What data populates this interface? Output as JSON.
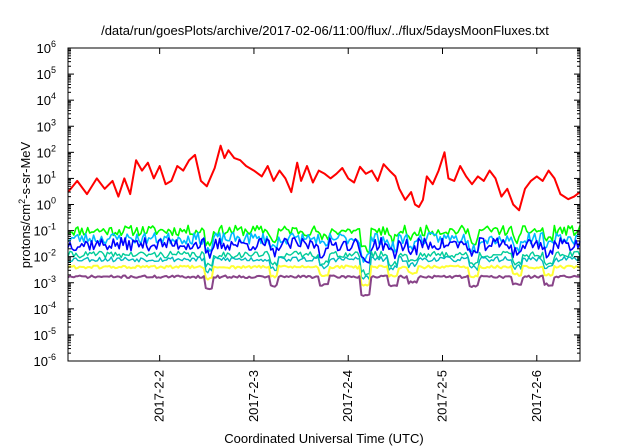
{
  "chart_data": {
    "type": "line",
    "title": "/data/run/goesPlots/archive/2017-02-06/11:00/flux/../flux/5daysMoonFluxes.txt",
    "xlabel": "Coordinated Universal Time (UTC)",
    "ylabel_parts": [
      "protons/cm",
      "2",
      "-s-sr-MeV"
    ],
    "y_scale": "log",
    "ylim": [
      1e-06,
      1000000.0
    ],
    "y_ticks": [
      {
        "base": "10",
        "exp": "-6",
        "value": 1e-06
      },
      {
        "base": "10",
        "exp": "-5",
        "value": 1e-05
      },
      {
        "base": "10",
        "exp": "-4",
        "value": 0.0001
      },
      {
        "base": "10",
        "exp": "-3",
        "value": 0.001
      },
      {
        "base": "10",
        "exp": "-2",
        "value": 0.01
      },
      {
        "base": "10",
        "exp": "-1",
        "value": 0.1
      },
      {
        "base": "10",
        "exp": "0",
        "value": 1
      },
      {
        "base": "10",
        "exp": "1",
        "value": 10
      },
      {
        "base": "10",
        "exp": "2",
        "value": 100
      },
      {
        "base": "10",
        "exp": "3",
        "value": 1000
      },
      {
        "base": "10",
        "exp": "4",
        "value": 10000
      },
      {
        "base": "10",
        "exp": "5",
        "value": 100000
      },
      {
        "base": "10",
        "exp": "6",
        "value": 1000000
      }
    ],
    "xlim": [
      "2017-02-01T00:40",
      "2017-02-06T11:00"
    ],
    "x_ticks": [
      {
        "label": "2017-2-2",
        "value": "2017-02-02T00:00"
      },
      {
        "label": "2017-2-3",
        "value": "2017-02-03T00:00"
      },
      {
        "label": "2017-2-4",
        "value": "2017-02-04T00:00"
      },
      {
        "label": "2017-2-5",
        "value": "2017-02-05T00:00"
      },
      {
        "label": "2017-2-6",
        "value": "2017-02-06T00:00"
      }
    ],
    "grid": false,
    "legend": "none",
    "series": [
      {
        "color": "#ff0000",
        "width": 2,
        "values": [
          [
            "2017-02-01T00:40",
            3
          ],
          [
            "2017-02-01T03:00",
            8
          ],
          [
            "2017-02-01T05:30",
            2.5
          ],
          [
            "2017-02-01T08:00",
            10
          ],
          [
            "2017-02-01T10:00",
            4
          ],
          [
            "2017-02-01T12:00",
            8
          ],
          [
            "2017-02-01T13:30",
            2
          ],
          [
            "2017-02-01T15:00",
            10
          ],
          [
            "2017-02-01T16:30",
            2.5
          ],
          [
            "2017-02-01T18:00",
            50
          ],
          [
            "2017-02-01T19:30",
            20
          ],
          [
            "2017-02-01T21:00",
            40
          ],
          [
            "2017-02-01T22:30",
            10
          ],
          [
            "2017-02-02T00:00",
            30
          ],
          [
            "2017-02-02T01:30",
            6
          ],
          [
            "2017-02-02T03:00",
            8
          ],
          [
            "2017-02-02T04:30",
            30
          ],
          [
            "2017-02-02T06:00",
            20
          ],
          [
            "2017-02-02T07:30",
            50
          ],
          [
            "2017-02-02T09:00",
            80
          ],
          [
            "2017-02-02T10:30",
            8
          ],
          [
            "2017-02-02T12:00",
            5
          ],
          [
            "2017-02-02T14:00",
            25
          ],
          [
            "2017-02-02T15:30",
            180
          ],
          [
            "2017-02-02T16:30",
            60
          ],
          [
            "2017-02-02T17:30",
            120
          ],
          [
            "2017-02-02T19:00",
            60
          ],
          [
            "2017-02-02T20:30",
            50
          ],
          [
            "2017-02-02T22:00",
            30
          ],
          [
            "2017-02-03T00:00",
            20
          ],
          [
            "2017-02-03T02:00",
            12
          ],
          [
            "2017-02-03T03:30",
            30
          ],
          [
            "2017-02-03T05:00",
            8
          ],
          [
            "2017-02-03T06:30",
            20
          ],
          [
            "2017-02-03T08:00",
            10
          ],
          [
            "2017-02-03T09:30",
            3
          ],
          [
            "2017-02-03T11:00",
            40
          ],
          [
            "2017-02-03T12:00",
            8
          ],
          [
            "2017-02-03T13:30",
            30
          ],
          [
            "2017-02-03T15:00",
            7
          ],
          [
            "2017-02-03T16:30",
            20
          ],
          [
            "2017-02-03T18:00",
            15
          ],
          [
            "2017-02-03T19:30",
            10
          ],
          [
            "2017-02-03T21:00",
            15
          ],
          [
            "2017-02-03T22:30",
            25
          ],
          [
            "2017-02-04T00:00",
            10
          ],
          [
            "2017-02-04T01:30",
            7
          ],
          [
            "2017-02-04T03:00",
            28
          ],
          [
            "2017-02-04T04:30",
            15
          ],
          [
            "2017-02-04T06:00",
            20
          ],
          [
            "2017-02-04T07:30",
            8
          ],
          [
            "2017-02-04T09:00",
            35
          ],
          [
            "2017-02-04T10:30",
            20
          ],
          [
            "2017-02-04T12:00",
            12
          ],
          [
            "2017-02-04T13:00",
            4
          ],
          [
            "2017-02-04T14:30",
            1.5
          ],
          [
            "2017-02-04T16:00",
            3
          ],
          [
            "2017-02-04T17:00",
            1
          ],
          [
            "2017-02-04T18:00",
            0.8
          ],
          [
            "2017-02-04T19:00",
            1.5
          ],
          [
            "2017-02-04T20:00",
            12
          ],
          [
            "2017-02-04T21:30",
            6
          ],
          [
            "2017-02-04T23:00",
            20
          ],
          [
            "2017-02-05T00:30",
            100
          ],
          [
            "2017-02-05T01:30",
            10
          ],
          [
            "2017-02-05T03:00",
            8
          ],
          [
            "2017-02-05T04:30",
            30
          ],
          [
            "2017-02-05T06:00",
            12
          ],
          [
            "2017-02-05T07:30",
            6
          ],
          [
            "2017-02-05T09:00",
            12
          ],
          [
            "2017-02-05T10:30",
            8
          ],
          [
            "2017-02-05T12:00",
            20
          ],
          [
            "2017-02-05T13:30",
            10
          ],
          [
            "2017-02-05T15:00",
            2
          ],
          [
            "2017-02-05T16:30",
            4
          ],
          [
            "2017-02-05T18:00",
            1
          ],
          [
            "2017-02-05T19:30",
            0.6
          ],
          [
            "2017-02-05T21:00",
            4
          ],
          [
            "2017-02-05T22:30",
            8
          ],
          [
            "2017-02-06T00:00",
            12
          ],
          [
            "2017-02-06T01:30",
            8
          ],
          [
            "2017-02-06T03:00",
            20
          ],
          [
            "2017-02-06T04:30",
            10
          ],
          [
            "2017-02-06T06:00",
            2.5
          ],
          [
            "2017-02-06T07:00",
            2
          ],
          [
            "2017-02-06T08:00",
            1.6
          ],
          [
            "2017-02-06T09:30",
            2
          ],
          [
            "2017-02-06T11:00",
            3
          ]
        ]
      },
      {
        "color": "#00ff00",
        "width": 1.6,
        "base": 0.1,
        "noise": 0.4,
        "seed": 11
      },
      {
        "color": "#00bbff",
        "width": 1.6,
        "base": 0.05,
        "noise": 0.45,
        "seed": 23
      },
      {
        "color": "#0000ff",
        "width": 1.6,
        "base": 0.03,
        "noise": 0.5,
        "seed": 37
      },
      {
        "color": "#00cc99",
        "width": 1.4,
        "base": 0.012,
        "noise": 0.25,
        "seed": 41
      },
      {
        "color": "#00bbbb",
        "width": 1.4,
        "base": 0.008,
        "noise": 0.2,
        "seed": 53
      },
      {
        "color": "#ffff33",
        "width": 2,
        "base": 0.004,
        "noise": 0.12,
        "seed": 61
      },
      {
        "color": "#884488",
        "width": 2,
        "base": 0.0017,
        "noise": 0.1,
        "seed": 71
      }
    ],
    "dips": [
      {
        "at": "2017-02-02T12:30",
        "factor": 0.35
      },
      {
        "at": "2017-02-03T05:00",
        "factor": 0.45
      },
      {
        "at": "2017-02-03T18:00",
        "factor": 0.5
      },
      {
        "at": "2017-02-04T04:30",
        "factor": 0.2
      },
      {
        "at": "2017-02-04T11:30",
        "factor": 0.45
      },
      {
        "at": "2017-02-04T16:30",
        "factor": 0.6
      },
      {
        "at": "2017-02-05T08:00",
        "factor": 0.45
      },
      {
        "at": "2017-02-05T19:00",
        "factor": 0.5
      },
      {
        "at": "2017-02-06T03:00",
        "factor": 0.5
      }
    ]
  }
}
